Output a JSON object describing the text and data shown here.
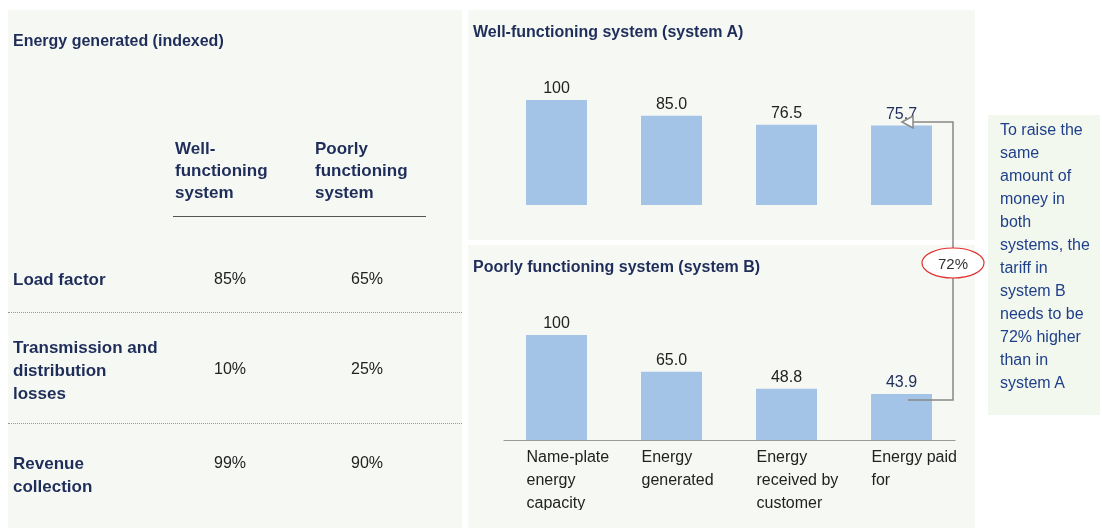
{
  "chart_data": [
    {
      "type": "other",
      "title": "Energy generated (indexed)",
      "categories": [
        "Load factor",
        "Transmission and distribution losses",
        "Revenue collection"
      ],
      "series": [
        {
          "name": "Well-functioning system",
          "values": [
            85,
            10,
            99
          ],
          "value_labels": [
            "85%",
            "10%",
            "99%"
          ]
        },
        {
          "name": "Poorly functioning system",
          "values": [
            65,
            25,
            90
          ],
          "value_labels": [
            "65%",
            "25%",
            "90%"
          ]
        }
      ]
    },
    {
      "type": "bar",
      "title": "Well-functioning system (system A)",
      "categories": [
        null,
        null,
        null,
        null
      ],
      "values": [
        100,
        85.0,
        76.5,
        75.7
      ],
      "value_labels": [
        "100",
        "85.0",
        "76.5",
        "75.7"
      ],
      "color": "#a3c3e7",
      "tick_labels": false
    },
    {
      "type": "bar",
      "title": "Poorly functioning system (system B)",
      "categories": [
        "Name-plate energy capacity",
        "Energy generated",
        "Energy received by customer",
        "Energy paid for"
      ],
      "values": [
        100,
        65.0,
        48.8,
        43.9
      ],
      "value_labels": [
        "100",
        "65.0",
        "48.8",
        "43.9"
      ],
      "color": "#a3c3e7",
      "tick_labels": "x",
      "annotations": [
        "72%",
        "To raise the same amount of money in both systems, the tariff in system B needs to be 72% higher than in system A"
      ]
    }
  ]
}
